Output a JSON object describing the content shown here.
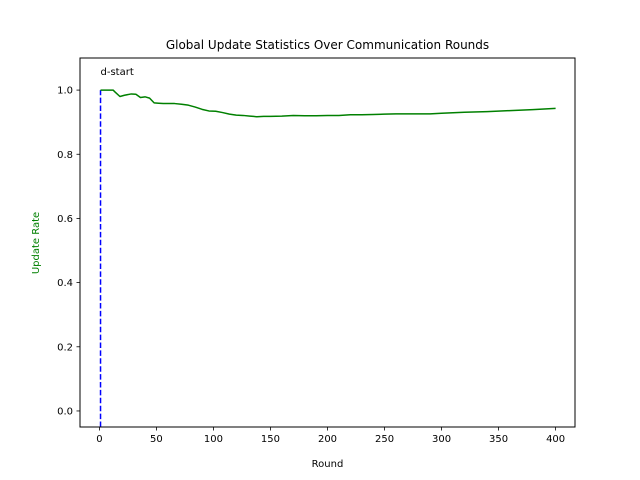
{
  "chart_data": {
    "type": "line",
    "title": "Global Update Statistics Over Communication Rounds",
    "xlabel": "Round",
    "ylabel": "Update Rate",
    "xlim": [
      -17,
      417
    ],
    "ylim": [
      -0.05,
      1.1
    ],
    "xticks": [
      0,
      50,
      100,
      150,
      200,
      250,
      300,
      350,
      400
    ],
    "yticks": [
      0.0,
      0.2,
      0.4,
      0.6,
      0.8,
      1.0
    ],
    "ytick_labels": [
      "0.0",
      "0.2",
      "0.4",
      "0.6",
      "0.8",
      "1.0"
    ],
    "grid": false,
    "series": [
      {
        "color": "#008000",
        "x": [
          1,
          5,
          12,
          14,
          18,
          22,
          28,
          32,
          36,
          40,
          44,
          48,
          52,
          56,
          60,
          66,
          72,
          78,
          84,
          90,
          96,
          102,
          108,
          114,
          120,
          126,
          132,
          138,
          144,
          150,
          160,
          170,
          180,
          190,
          200,
          210,
          220,
          230,
          240,
          250,
          260,
          270,
          280,
          290,
          300,
          320,
          340,
          360,
          380,
          400
        ],
        "y": [
          1.0,
          1.0,
          1.0,
          0.993,
          0.98,
          0.984,
          0.988,
          0.987,
          0.977,
          0.979,
          0.975,
          0.96,
          0.959,
          0.958,
          0.958,
          0.958,
          0.956,
          0.953,
          0.947,
          0.94,
          0.935,
          0.934,
          0.93,
          0.925,
          0.922,
          0.921,
          0.919,
          0.917,
          0.918,
          0.918,
          0.919,
          0.921,
          0.92,
          0.92,
          0.921,
          0.921,
          0.923,
          0.923,
          0.924,
          0.925,
          0.926,
          0.926,
          0.926,
          0.926,
          0.928,
          0.931,
          0.933,
          0.936,
          0.939,
          0.943
        ]
      }
    ],
    "vline": {
      "x": 1,
      "color": "#0000ff",
      "style": "dashed"
    },
    "annotation": {
      "text": "d-start",
      "x": 1,
      "y": 1.06
    },
    "ylabel_color": "#008000"
  }
}
